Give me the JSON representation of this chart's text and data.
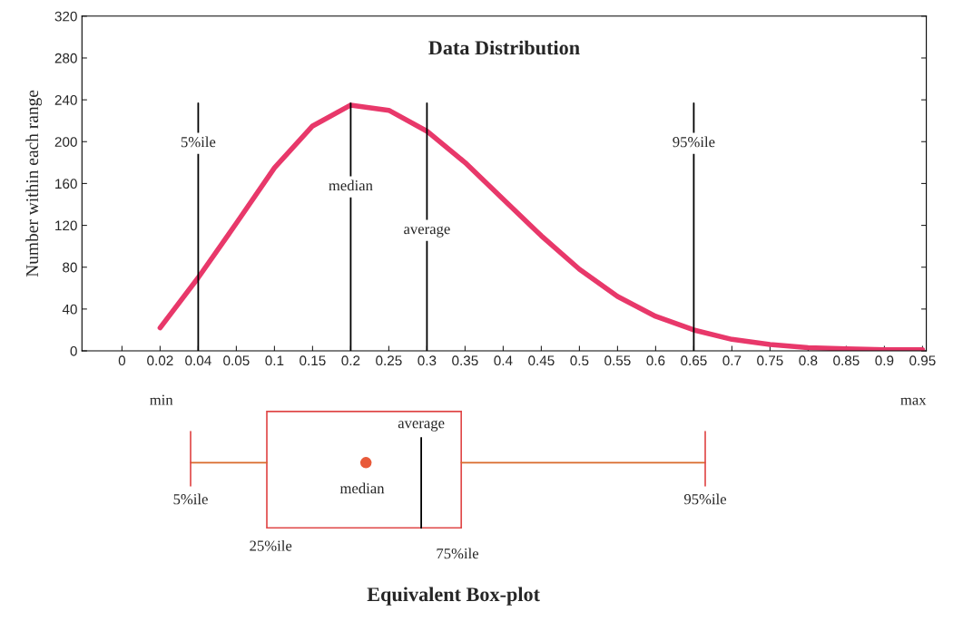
{
  "chart_data": [
    {
      "type": "line",
      "title": "Data Distribution",
      "ylabel": "Number within each range",
      "categories": [
        "0",
        "0.02",
        "0.04",
        "0.05",
        "0.1",
        "0.15",
        "0.2",
        "0.25",
        "0.3",
        "0.35",
        "0.4",
        "0.45",
        "0.5",
        "0.55",
        "0.6",
        "0.65",
        "0.7",
        "0.75",
        "0.8",
        "0.85",
        "0.9",
        "0.95"
      ],
      "series": [
        {
          "color": "#e8386a",
          "values": [
            null,
            22,
            70,
            122,
            175,
            215,
            235,
            230,
            210,
            180,
            145,
            110,
            78,
            52,
            33,
            20,
            11,
            6,
            3,
            2,
            1,
            1
          ]
        }
      ],
      "ylim": [
        0,
        320
      ],
      "yticks": [
        0,
        40,
        80,
        120,
        160,
        200,
        240,
        280,
        320
      ],
      "grid": false,
      "legend": false,
      "marker": "none",
      "line_style": "solid",
      "ref_lines": [
        {
          "axis": "x",
          "value": "0.04",
          "label": "5%ile",
          "color": "#000000"
        },
        {
          "axis": "x",
          "value": "0.2",
          "label": "median",
          "color": "#000000"
        },
        {
          "axis": "x",
          "value": "0.3",
          "label": "average",
          "color": "#000000"
        },
        {
          "axis": "x",
          "value": "0.65",
          "label": "95%ile",
          "color": "#000000"
        }
      ],
      "annotations": [
        "min",
        "max"
      ]
    },
    {
      "type": "other",
      "title": "Equivalent Box-plot",
      "annotations": [
        "5%ile",
        "25%ile",
        "median",
        "average",
        "75%ile",
        "95%ile"
      ]
    }
  ]
}
